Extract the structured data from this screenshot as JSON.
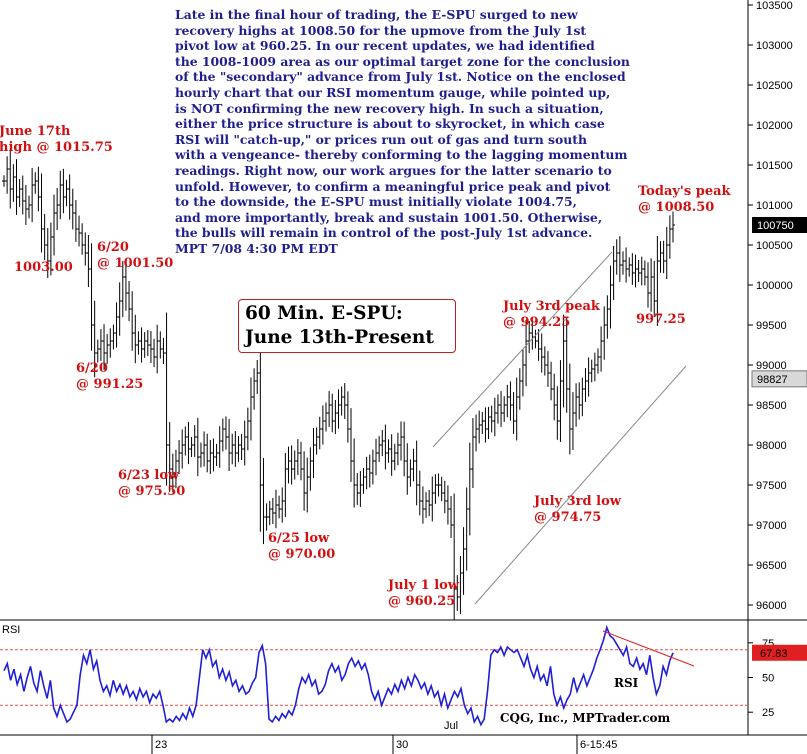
{
  "commentary": "Late in the final hour of trading, the E-SPU surged to new\nrecovery highs at 1008.50 for the upmove from the July 1st\npivot low at 960.25. In our recent updates, we had identified\nthe 1008-1009 area as our optimal target zone for the conclusion\nof the \"secondary\" advance from July 1st. Notice on the enclosed\nhourly chart that our RSI momentum gauge, while pointed up,\nis NOT confirming the new recovery high. In such a situation,\neither the price structure is about to skyrocket, in which case\nRSI will \"catch-up,\" or prices run out of gas and turn south\nwith a vengeance- thereby conforming to the lagging momentum\nreadings. Right now, our work argues for the latter scenario to\nunfold. However, to confirm a meaningful price peak and pivot\nto the downside, the E-SPU must initially violate 1004.75,\nand more importantly, break and sustain 1001.50. Otherwise,\nthe bulls will remain in control of the post-July 1st advance.\nMPT 7/08 4:30 PM EDT",
  "title_box": {
    "line1": "60 Min. E-SPU:",
    "line2": "June 13th-Present"
  },
  "annotations": {
    "june17": {
      "line1": "June 17th",
      "line2": "high @ 1015.75"
    },
    "low1003": "1003.00",
    "jun20a": {
      "line1": "6/20",
      "line2": "@ 1001.50"
    },
    "jun20b": {
      "line1": "6/20",
      "line2": "@ 991.25"
    },
    "jun23": {
      "line1": "6/23 low",
      "line2": "@ 975.50"
    },
    "jun25": {
      "line1": "6/25 low",
      "line2": "@ 970.00"
    },
    "jul1": {
      "line1": "July 1 low",
      "line2": "@ 960.25"
    },
    "jul3peak": {
      "line1": "July 3rd peak",
      "line2": "@ 994.25"
    },
    "jul3low": {
      "line1": "July 3rd low",
      "line2": "@ 974.75"
    },
    "todaypeak": {
      "line1": "Today's peak",
      "line2": "@ 1008.50"
    },
    "v997": "997.25"
  },
  "rsi_panel": {
    "label": "RSI",
    "series_label": "RSI",
    "credit": "CQG, Inc., MPTrader.com",
    "month_label": "Jul"
  },
  "time_axis": {
    "labels": [
      "23",
      "30",
      "6-15:45"
    ]
  },
  "price_badges": {
    "last": "100750",
    "other": "98827"
  },
  "rsi_badge": "67.83",
  "colors": {
    "price_bars": "#000000",
    "rsi_line": "#1f1fd6",
    "annotation": "#d01010",
    "commentary": "#1e1e8c",
    "dashed_levels": "#e05050"
  },
  "chart_data": [
    {
      "type": "ohlc",
      "title": "60 Min. E-SPU: June 13th-Present",
      "y_axis_labels": [
        "103500",
        "103000",
        "102500",
        "102000",
        "101500",
        "101000",
        "100500",
        "100000",
        "99500",
        "99000",
        "98500",
        "98000",
        "97500",
        "97000",
        "96500",
        "96000"
      ],
      "ylim": [
        960,
        1036
      ],
      "x_labels": [
        "23",
        "30",
        "6-15:45"
      ],
      "closes": [
        1013,
        1014.5,
        1012,
        1013.5,
        1011,
        1012,
        1010.5,
        1009.5,
        1010,
        1012.5,
        1013,
        1011,
        1007,
        1005,
        1003,
        1006,
        1009,
        1010,
        1012.5,
        1011,
        1012,
        1010,
        1009,
        1007,
        1006.5,
        1005,
        1004,
        1002,
        995,
        991.5,
        992,
        993,
        991.5,
        992.5,
        993,
        994,
        996,
        998,
        1001,
        999,
        997,
        994,
        992.5,
        993,
        992,
        993,
        992.5,
        992,
        991,
        993,
        992,
        991.5,
        980,
        977,
        976,
        978,
        979,
        980,
        981,
        979.5,
        980,
        981,
        978.5,
        979,
        980,
        978,
        979,
        978.5,
        979,
        980.5,
        982,
        981,
        979,
        980,
        979,
        980,
        979.5,
        981,
        983,
        986,
        988,
        989,
        975,
        971,
        971,
        972,
        971.5,
        972.5,
        972,
        973,
        977,
        978,
        977,
        978,
        979,
        977,
        974,
        976,
        978,
        980,
        981,
        982,
        983,
        984,
        985,
        983,
        984,
        985,
        986,
        985,
        982,
        978,
        975,
        974,
        975,
        976,
        977,
        976.5,
        978,
        979,
        980,
        980.5,
        979,
        979.5,
        978,
        979,
        980,
        981,
        978,
        976,
        977,
        978,
        975,
        973,
        972,
        973,
        972.5,
        974,
        975,
        975,
        974,
        973,
        972,
        970,
        962,
        961,
        964,
        967,
        972,
        977,
        981,
        982,
        982.5,
        983,
        982,
        983.5,
        983,
        984,
        985,
        984,
        985,
        986,
        985,
        983,
        986,
        988,
        990,
        993,
        994,
        993.5,
        993,
        992,
        991,
        990,
        989,
        987,
        985,
        983,
        988,
        993,
        987,
        982,
        984,
        986,
        985,
        987,
        988,
        989,
        989.5,
        990,
        991,
        993,
        995,
        997,
        1000,
        1003,
        1004,
        1002.5,
        1003,
        1002,
        1002.5,
        1001.5,
        1002,
        1001.5,
        1002,
        1001,
        999,
        1001,
        998,
        1003,
        1004,
        1003,
        1005,
        1007,
        1007.5
      ]
    },
    {
      "type": "line",
      "title": "RSI",
      "y_axis_labels": [
        "75",
        "50",
        "25"
      ],
      "ylim": [
        10,
        90
      ],
      "values": [
        55,
        60,
        48,
        56,
        45,
        52,
        40,
        50,
        58,
        46,
        40,
        55,
        44,
        35,
        48,
        28,
        22,
        30,
        24,
        18,
        20,
        25,
        30,
        52,
        66,
        60,
        70,
        56,
        62,
        48,
        40,
        44,
        37,
        48,
        40,
        45,
        38,
        44,
        36,
        40,
        34,
        42,
        36,
        40,
        32,
        38,
        35,
        40,
        30,
        18,
        20,
        18,
        22,
        19,
        24,
        20,
        28,
        22,
        30,
        50,
        70,
        64,
        70,
        58,
        62,
        50,
        56,
        48,
        54,
        44,
        48,
        40,
        44,
        38,
        40,
        46,
        50,
        68,
        73,
        60,
        20,
        18,
        22,
        19,
        24,
        21,
        26,
        23,
        30,
        42,
        50,
        46,
        52,
        44,
        48,
        38,
        40,
        45,
        55,
        60,
        54,
        58,
        48,
        52,
        60,
        64,
        58,
        62,
        56,
        60,
        52,
        40,
        34,
        40,
        30,
        36,
        42,
        38,
        45,
        40,
        48,
        42,
        50,
        44,
        52,
        48,
        42,
        46,
        38,
        44,
        36,
        40,
        30,
        38,
        28,
        34,
        40,
        36,
        42,
        30,
        24,
        28,
        18,
        22,
        16,
        20,
        40,
        66,
        70,
        68,
        72,
        66,
        72,
        70,
        68,
        70,
        64,
        58,
        66,
        56,
        50,
        58,
        48,
        52,
        44,
        58,
        38,
        30,
        36,
        28,
        34,
        38,
        50,
        40,
        46,
        52,
        44,
        50,
        56,
        64,
        70,
        77,
        86,
        80,
        78,
        74,
        70,
        66,
        72,
        60,
        58,
        64,
        56,
        60,
        52,
        66,
        50,
        38,
        44,
        58,
        52,
        62,
        67.83
      ],
      "levels": [
        70,
        30
      ]
    }
  ]
}
